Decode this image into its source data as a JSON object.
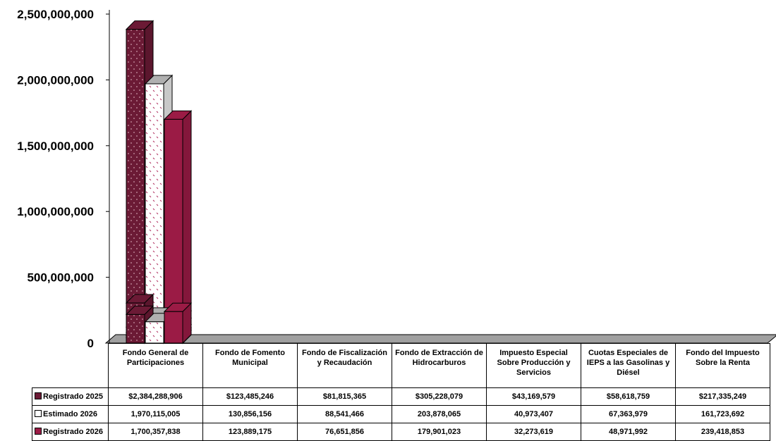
{
  "chart_data": {
    "type": "bar3d",
    "categories": [
      "Fondo General de Participaciones",
      "Fondo de Fomento Municipal",
      "Fondo de Fiscalización y Recaudación",
      "Fondo de Extracción de Hidrocarburos",
      "Impuesto Especial Sobre Producción  y Servicios",
      "Cuotas Especiales de IEPS a las Gasolinas y Diésel",
      "Fondo del Impuesto Sobre la Renta"
    ],
    "series": [
      {
        "name": "Registrado 2025",
        "color": "#6b1a35",
        "values": [
          2384288906,
          123485246,
          81815365,
          305228079,
          43169579,
          58618759,
          217335249
        ],
        "value_labels": [
          "$2,384,288,906",
          "$123,485,246",
          "$81,815,365",
          "$305,228,079",
          "$43,169,579",
          "$58,618,759",
          "$217,335,249"
        ]
      },
      {
        "name": "Estimado 2026",
        "color": "#ffffff",
        "values": [
          1970115005,
          130856156,
          88541466,
          203878065,
          40973407,
          67363979,
          161723692
        ],
        "value_labels": [
          "1,970,115,005",
          "130,856,156",
          "88,541,466",
          "203,878,065",
          "40,973,407",
          "67,363,979",
          "161,723,692"
        ]
      },
      {
        "name": "Registrado 2026",
        "color": "#9b1b45",
        "values": [
          1700357838,
          123889175,
          76651856,
          179901023,
          32273619,
          48971992,
          239418853
        ],
        "value_labels": [
          "1,700,357,838",
          "123,889,175",
          "76,651,856",
          "179,901,023",
          "32,273,619",
          "48,971,992",
          "239,418,853"
        ]
      }
    ],
    "ylim": [
      0,
      2500000000
    ],
    "yticks": [
      {
        "value": 0,
        "label": "0"
      },
      {
        "value": 500000000,
        "label": "500,000,000"
      },
      {
        "value": 1000000000,
        "label": "1,000,000,000"
      },
      {
        "value": 1500000000,
        "label": "1,500,000,000"
      },
      {
        "value": 2000000000,
        "label": "2,000,000,000"
      },
      {
        "value": 2500000000,
        "label": "2,500,000,000"
      }
    ]
  }
}
